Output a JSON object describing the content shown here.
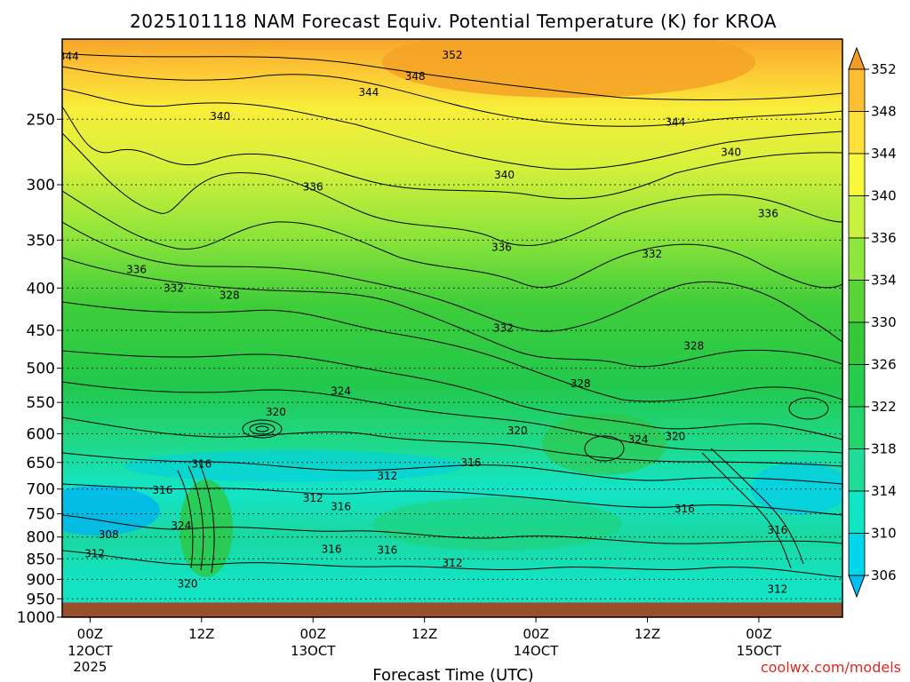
{
  "chart_data": {
    "type": "heatmap",
    "title": "2025101118 NAM Forecast Equiv. Potential Temperature (K) for KROA",
    "xlabel": "Forecast Time (UTC)",
    "ylabel": "",
    "credit": "coolwx.com/models",
    "y_axis": {
      "scale": "pressure (log, inverted)",
      "range_hPa": [
        1000,
        200
      ],
      "ticks": [
        250,
        300,
        350,
        400,
        450,
        500,
        550,
        600,
        650,
        700,
        750,
        800,
        850,
        900,
        950,
        1000
      ]
    },
    "x_axis": {
      "range_hours": [
        -3,
        81
      ],
      "ticks": [
        {
          "hour": 0,
          "label": "00Z",
          "date": "12OCT",
          "year": "2025"
        },
        {
          "hour": 12,
          "label": "12Z",
          "date": "",
          "year": ""
        },
        {
          "hour": 24,
          "label": "00Z",
          "date": "13OCT",
          "year": ""
        },
        {
          "hour": 36,
          "label": "12Z",
          "date": "",
          "year": ""
        },
        {
          "hour": 48,
          "label": "00Z",
          "date": "14OCT",
          "year": ""
        },
        {
          "hour": 60,
          "label": "12Z",
          "date": "",
          "year": ""
        },
        {
          "hour": 72,
          "label": "00Z",
          "date": "15OCT",
          "year": ""
        }
      ]
    },
    "grid": "dotted",
    "colorbar": {
      "levels": [
        306,
        310,
        314,
        318,
        322,
        326,
        330,
        334,
        336,
        340,
        344,
        348,
        352
      ],
      "colors": [
        "#00bcf2",
        "#00d7ea",
        "#11e6c4",
        "#1fdc96",
        "#22d46b",
        "#25cd4c",
        "#35c83a",
        "#5bd43a",
        "#8fe63c",
        "#c8f23f",
        "#f7f73c",
        "#fde03a",
        "#fcbe32",
        "#f49b25"
      ]
    },
    "ground_surface_hPa": 960,
    "contour_labels": [
      {
        "value": 344,
        "hour": -2.3,
        "hPa": 210
      },
      {
        "value": 352,
        "hour": 39,
        "hPa": 209
      },
      {
        "value": 348,
        "hour": 35,
        "hPa": 222
      },
      {
        "value": 344,
        "hour": 30,
        "hPa": 232
      },
      {
        "value": 340,
        "hour": 14,
        "hPa": 248
      },
      {
        "value": 344,
        "hour": 63,
        "hPa": 252
      },
      {
        "value": 340,
        "hour": 69,
        "hPa": 274
      },
      {
        "value": 340,
        "hour": 44.6,
        "hPa": 292
      },
      {
        "value": 336,
        "hour": 24,
        "hPa": 302
      },
      {
        "value": 336,
        "hour": 73,
        "hPa": 325
      },
      {
        "value": 336,
        "hour": 44.3,
        "hPa": 357
      },
      {
        "value": 332,
        "hour": 60.5,
        "hPa": 364
      },
      {
        "value": 336,
        "hour": 5,
        "hPa": 380
      },
      {
        "value": 332,
        "hour": 9,
        "hPa": 400
      },
      {
        "value": 328,
        "hour": 15,
        "hPa": 408
      },
      {
        "value": 332,
        "hour": 44.5,
        "hPa": 447
      },
      {
        "value": 328,
        "hour": 65,
        "hPa": 470
      },
      {
        "value": 328,
        "hour": 52.8,
        "hPa": 522
      },
      {
        "value": 324,
        "hour": 27,
        "hPa": 533
      },
      {
        "value": 320,
        "hour": 20,
        "hPa": 565
      },
      {
        "value": 320,
        "hour": 46,
        "hPa": 595
      },
      {
        "value": 324,
        "hour": 59,
        "hPa": 610
      },
      {
        "value": 320,
        "hour": 63,
        "hPa": 605
      },
      {
        "value": 316,
        "hour": 12,
        "hPa": 653
      },
      {
        "value": 316,
        "hour": 41,
        "hPa": 650
      },
      {
        "value": 312,
        "hour": 32,
        "hPa": 675
      },
      {
        "value": 316,
        "hour": 7.8,
        "hPa": 702
      },
      {
        "value": 312,
        "hour": 24,
        "hPa": 718
      },
      {
        "value": 316,
        "hour": 27,
        "hPa": 735
      },
      {
        "value": 316,
        "hour": 64,
        "hPa": 740
      },
      {
        "value": 324,
        "hour": 9.8,
        "hPa": 775
      },
      {
        "value": 308,
        "hour": 2,
        "hPa": 795
      },
      {
        "value": 316,
        "hour": 74,
        "hPa": 785
      },
      {
        "value": 316,
        "hour": 26,
        "hPa": 828
      },
      {
        "value": 316,
        "hour": 32,
        "hPa": 830
      },
      {
        "value": 312,
        "hour": 0.5,
        "hPa": 838
      },
      {
        "value": 312,
        "hour": 39,
        "hPa": 860
      },
      {
        "value": 320,
        "hour": 10.5,
        "hPa": 912
      },
      {
        "value": 312,
        "hour": 74,
        "hPa": 925
      }
    ]
  }
}
